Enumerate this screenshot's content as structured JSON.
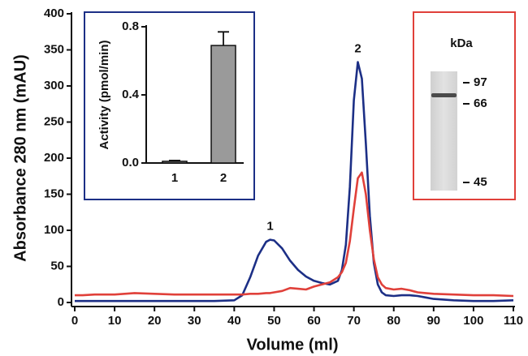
{
  "chart_data": [
    {
      "type": "line",
      "xlabel": "Volume (ml)",
      "ylabel": "Absorbance 280 nm (mAU)",
      "x": [
        0,
        2,
        5,
        10,
        15,
        20,
        25,
        30,
        35,
        40,
        42,
        44,
        46,
        48,
        49,
        50,
        52,
        54,
        56,
        58,
        60,
        62,
        64,
        66,
        67,
        68,
        69,
        70,
        71,
        72,
        73,
        74,
        75,
        76,
        77,
        78,
        80,
        82,
        84,
        86,
        88,
        90,
        95,
        100,
        105,
        110
      ],
      "series": [
        {
          "color": "#1c2f86",
          "values": [
            2,
            2,
            2,
            2,
            2,
            2,
            2,
            2,
            2,
            3,
            10,
            35,
            65,
            84,
            87,
            86,
            75,
            58,
            45,
            36,
            30,
            27,
            25,
            30,
            45,
            80,
            160,
            280,
            333,
            310,
            220,
            120,
            55,
            25,
            14,
            10,
            9,
            10,
            10,
            9,
            7,
            5,
            3,
            2,
            2,
            3
          ]
        },
        {
          "color": "#e0403a",
          "values": [
            10,
            10,
            11,
            11,
            13,
            12,
            11,
            11,
            11,
            11,
            11,
            12,
            12,
            13,
            13,
            14,
            16,
            20,
            19,
            18,
            22,
            25,
            28,
            35,
            42,
            55,
            85,
            130,
            172,
            180,
            150,
            100,
            60,
            35,
            25,
            20,
            18,
            19,
            17,
            14,
            13,
            12,
            11,
            10,
            10,
            9
          ]
        }
      ],
      "annotations": [
        {
          "text": "1",
          "x": 49
        },
        {
          "text": "2",
          "x": 71
        }
      ],
      "xlim": [
        0,
        110
      ],
      "xticks": [
        0,
        10,
        20,
        30,
        40,
        50,
        60,
        70,
        80,
        90,
        100,
        110
      ],
      "ylim": [
        0,
        400
      ],
      "yticks": [
        0,
        50,
        100,
        150,
        200,
        250,
        300,
        350,
        400
      ]
    },
    {
      "type": "bar",
      "ylabel": "Activity (pmol/min)",
      "categories": [
        "1",
        "2"
      ],
      "values": [
        0.01,
        0.69
      ],
      "errors": [
        0.005,
        0.08
      ],
      "color": "#9a9a9a",
      "frame_color": "#1c2f86",
      "ylim": [
        0,
        0.8
      ],
      "yticks": [
        {
          "value": 0,
          "label": "0.0"
        },
        0.4,
        0.8
      ]
    }
  ],
  "gel": {
    "unit": "kDa",
    "markers": [
      "97",
      "66",
      "45"
    ],
    "frame_color": "#e0403a"
  }
}
